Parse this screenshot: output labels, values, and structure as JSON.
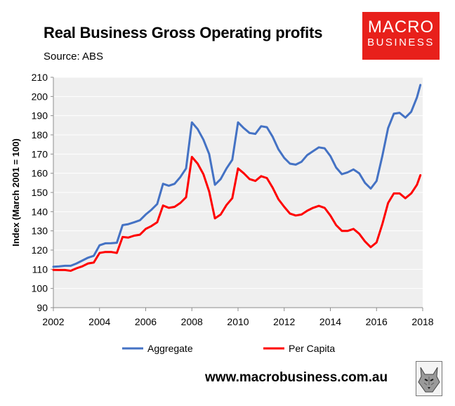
{
  "branding": {
    "logo_line1": "MACRO",
    "logo_line2": "BUSINESS",
    "website": "www.macrobusiness.com.au",
    "logo_color": "#e8201b"
  },
  "chart_data": {
    "type": "line",
    "title": "Real Business Gross Operating profits",
    "subtitle": "Source: ABS",
    "ylabel": "Index (March 2001 = 100)",
    "xlabel": "",
    "ylim": [
      90,
      210
    ],
    "xlim": [
      2002,
      2018
    ],
    "yticks": [
      90,
      100,
      110,
      120,
      130,
      140,
      150,
      160,
      170,
      180,
      190,
      200,
      210
    ],
    "xticks": [
      2002,
      2004,
      2006,
      2008,
      2010,
      2012,
      2014,
      2016,
      2018
    ],
    "grid": "horizontal",
    "legend_position": "bottom",
    "x": [
      2002.0,
      2002.25,
      2002.5,
      2002.75,
      2003.0,
      2003.25,
      2003.5,
      2003.75,
      2004.0,
      2004.25,
      2004.5,
      2004.75,
      2005.0,
      2005.25,
      2005.5,
      2005.75,
      2006.0,
      2006.25,
      2006.5,
      2006.75,
      2007.0,
      2007.25,
      2007.5,
      2007.75,
      2008.0,
      2008.25,
      2008.5,
      2008.75,
      2009.0,
      2009.25,
      2009.5,
      2009.75,
      2010.0,
      2010.25,
      2010.5,
      2010.75,
      2011.0,
      2011.25,
      2011.5,
      2011.75,
      2012.0,
      2012.25,
      2012.5,
      2012.75,
      2013.0,
      2013.25,
      2013.5,
      2013.75,
      2014.0,
      2014.25,
      2014.5,
      2014.75,
      2015.0,
      2015.25,
      2015.5,
      2015.75,
      2016.0,
      2016.25,
      2016.5,
      2016.75,
      2017.0,
      2017.25,
      2017.5,
      2017.75,
      2017.9
    ],
    "series": [
      {
        "name": "Aggregate",
        "color": "#4472c4",
        "values": [
          111.3,
          111.5,
          111.8,
          111.8,
          113.0,
          114.5,
          116.0,
          117.0,
          122.5,
          123.5,
          123.6,
          123.8,
          133.0,
          133.5,
          134.5,
          135.5,
          138.5,
          141.0,
          144.0,
          154.5,
          153.5,
          154.5,
          158.0,
          162.5,
          186.5,
          183.0,
          177.5,
          170.0,
          154.0,
          157.0,
          162.5,
          167.0,
          186.5,
          183.5,
          181.0,
          180.5,
          184.5,
          184.0,
          179.0,
          172.5,
          168.0,
          165.0,
          164.5,
          166.0,
          169.5,
          171.5,
          173.5,
          173.0,
          169.0,
          163.0,
          159.5,
          160.5,
          162.0,
          160.0,
          155.0,
          152.0,
          156.0,
          169.0,
          183.5,
          191.0,
          191.5,
          189.0,
          192.0,
          199.5,
          206.0
        ]
      },
      {
        "name": "Per Capita",
        "color": "#ff0000",
        "values": [
          109.7,
          109.6,
          109.6,
          109.2,
          110.5,
          111.5,
          113.0,
          113.5,
          118.5,
          119.0,
          119.0,
          118.5,
          126.8,
          126.5,
          127.5,
          128.0,
          131.0,
          132.5,
          134.5,
          143.2,
          142.0,
          142.5,
          144.5,
          147.5,
          168.5,
          165.0,
          159.5,
          150.5,
          136.5,
          138.5,
          143.5,
          147.0,
          162.5,
          160.0,
          157.0,
          156.0,
          158.5,
          157.5,
          152.5,
          146.5,
          142.5,
          139.0,
          138.0,
          138.5,
          140.5,
          142.0,
          143.0,
          142.0,
          138.0,
          133.0,
          130.0,
          130.0,
          131.0,
          128.5,
          124.5,
          121.5,
          124.0,
          133.5,
          144.5,
          149.5,
          149.5,
          147.0,
          149.5,
          154.0,
          159.0
        ]
      }
    ]
  }
}
